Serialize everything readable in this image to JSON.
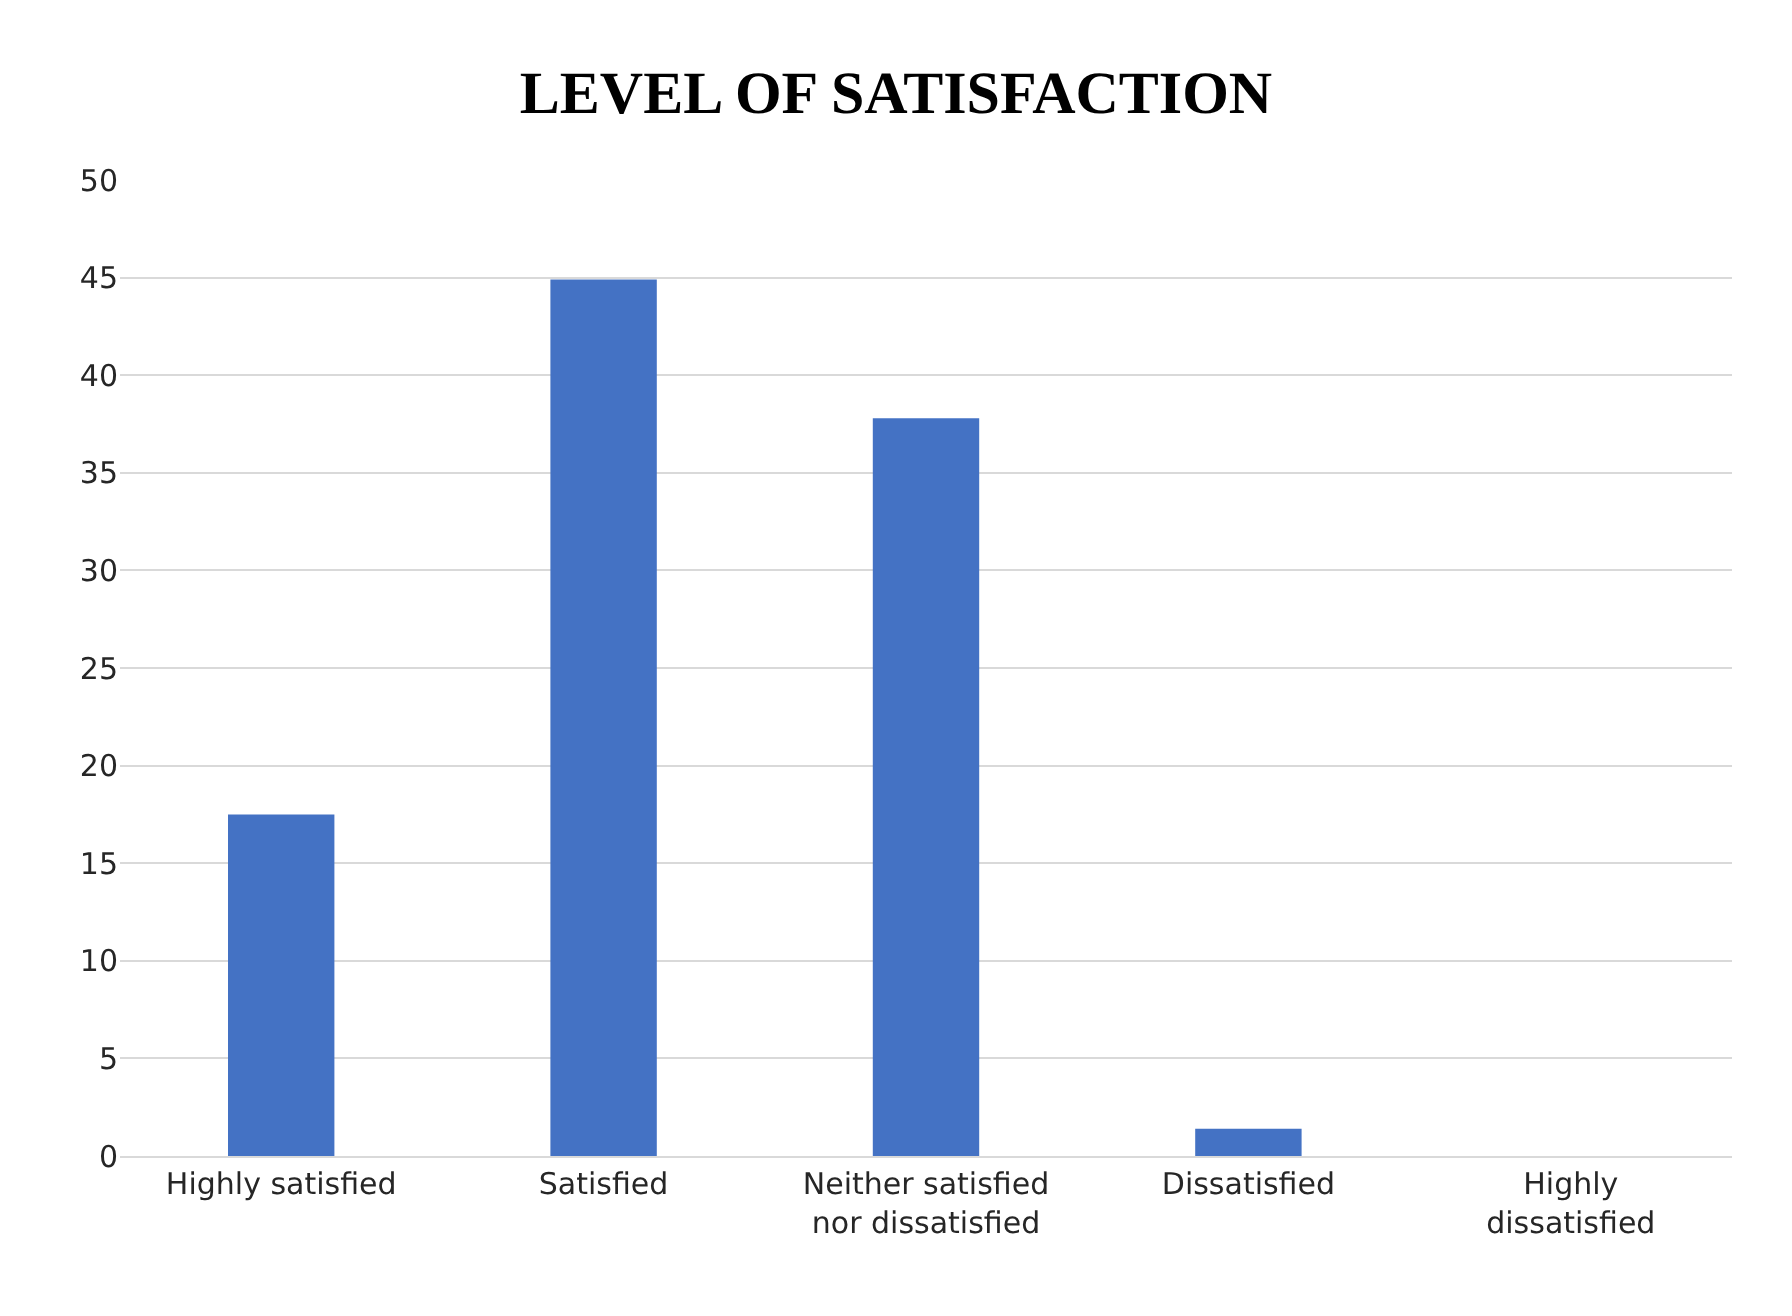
{
  "chart_data": {
    "type": "bar",
    "title": "LEVEL OF SATISFACTION",
    "categories": [
      "Highly satisfied",
      "Satisfied",
      "Neither satisfied\nnor dissatisfied",
      "Dissatisfied",
      "Highly\ndissatisfied"
    ],
    "values": [
      17.5,
      44.9,
      37.8,
      1.4,
      0
    ],
    "color": "#4472c4",
    "ylim": [
      0,
      50
    ],
    "yticks": [
      0,
      5,
      10,
      15,
      20,
      25,
      30,
      35,
      40,
      45,
      50
    ],
    "grid": "y"
  }
}
